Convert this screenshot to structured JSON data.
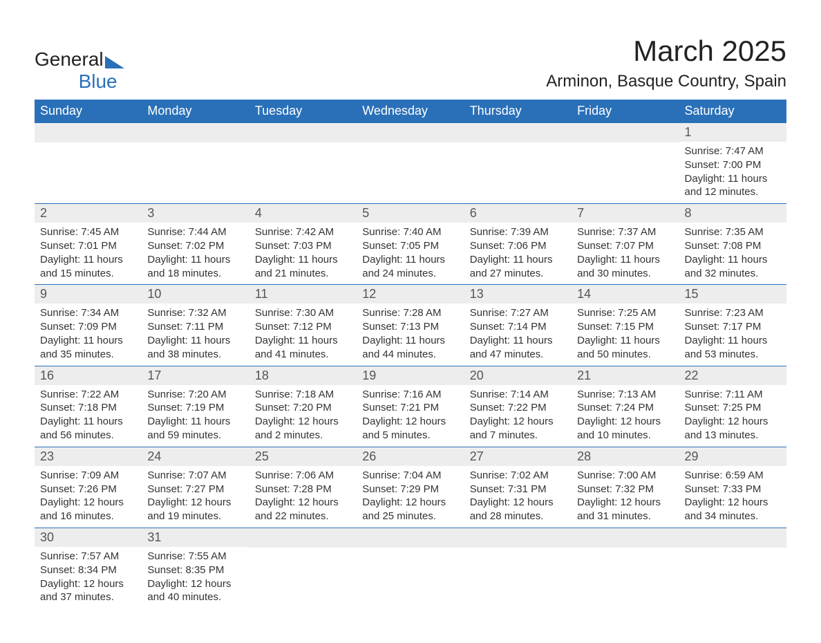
{
  "logo": {
    "line1": "General",
    "line2": "Blue"
  },
  "title": "March 2025",
  "subtitle": "Arminon, Basque Country, Spain",
  "colors": {
    "header_bg": "#2a70b8",
    "header_text": "#ffffff",
    "daynum_bg": "#ededed",
    "body_bg": "#ffffff",
    "text": "#333333"
  },
  "day_headers": [
    "Sunday",
    "Monday",
    "Tuesday",
    "Wednesday",
    "Thursday",
    "Friday",
    "Saturday"
  ],
  "first_weekday": 6,
  "num_days": 31,
  "days": {
    "1": {
      "sunrise": "7:47 AM",
      "sunset": "7:00 PM",
      "daylight": "11 hours and 12 minutes."
    },
    "2": {
      "sunrise": "7:45 AM",
      "sunset": "7:01 PM",
      "daylight": "11 hours and 15 minutes."
    },
    "3": {
      "sunrise": "7:44 AM",
      "sunset": "7:02 PM",
      "daylight": "11 hours and 18 minutes."
    },
    "4": {
      "sunrise": "7:42 AM",
      "sunset": "7:03 PM",
      "daylight": "11 hours and 21 minutes."
    },
    "5": {
      "sunrise": "7:40 AM",
      "sunset": "7:05 PM",
      "daylight": "11 hours and 24 minutes."
    },
    "6": {
      "sunrise": "7:39 AM",
      "sunset": "7:06 PM",
      "daylight": "11 hours and 27 minutes."
    },
    "7": {
      "sunrise": "7:37 AM",
      "sunset": "7:07 PM",
      "daylight": "11 hours and 30 minutes."
    },
    "8": {
      "sunrise": "7:35 AM",
      "sunset": "7:08 PM",
      "daylight": "11 hours and 32 minutes."
    },
    "9": {
      "sunrise": "7:34 AM",
      "sunset": "7:09 PM",
      "daylight": "11 hours and 35 minutes."
    },
    "10": {
      "sunrise": "7:32 AM",
      "sunset": "7:11 PM",
      "daylight": "11 hours and 38 minutes."
    },
    "11": {
      "sunrise": "7:30 AM",
      "sunset": "7:12 PM",
      "daylight": "11 hours and 41 minutes."
    },
    "12": {
      "sunrise": "7:28 AM",
      "sunset": "7:13 PM",
      "daylight": "11 hours and 44 minutes."
    },
    "13": {
      "sunrise": "7:27 AM",
      "sunset": "7:14 PM",
      "daylight": "11 hours and 47 minutes."
    },
    "14": {
      "sunrise": "7:25 AM",
      "sunset": "7:15 PM",
      "daylight": "11 hours and 50 minutes."
    },
    "15": {
      "sunrise": "7:23 AM",
      "sunset": "7:17 PM",
      "daylight": "11 hours and 53 minutes."
    },
    "16": {
      "sunrise": "7:22 AM",
      "sunset": "7:18 PM",
      "daylight": "11 hours and 56 minutes."
    },
    "17": {
      "sunrise": "7:20 AM",
      "sunset": "7:19 PM",
      "daylight": "11 hours and 59 minutes."
    },
    "18": {
      "sunrise": "7:18 AM",
      "sunset": "7:20 PM",
      "daylight": "12 hours and 2 minutes."
    },
    "19": {
      "sunrise": "7:16 AM",
      "sunset": "7:21 PM",
      "daylight": "12 hours and 5 minutes."
    },
    "20": {
      "sunrise": "7:14 AM",
      "sunset": "7:22 PM",
      "daylight": "12 hours and 7 minutes."
    },
    "21": {
      "sunrise": "7:13 AM",
      "sunset": "7:24 PM",
      "daylight": "12 hours and 10 minutes."
    },
    "22": {
      "sunrise": "7:11 AM",
      "sunset": "7:25 PM",
      "daylight": "12 hours and 13 minutes."
    },
    "23": {
      "sunrise": "7:09 AM",
      "sunset": "7:26 PM",
      "daylight": "12 hours and 16 minutes."
    },
    "24": {
      "sunrise": "7:07 AM",
      "sunset": "7:27 PM",
      "daylight": "12 hours and 19 minutes."
    },
    "25": {
      "sunrise": "7:06 AM",
      "sunset": "7:28 PM",
      "daylight": "12 hours and 22 minutes."
    },
    "26": {
      "sunrise": "7:04 AM",
      "sunset": "7:29 PM",
      "daylight": "12 hours and 25 minutes."
    },
    "27": {
      "sunrise": "7:02 AM",
      "sunset": "7:31 PM",
      "daylight": "12 hours and 28 minutes."
    },
    "28": {
      "sunrise": "7:00 AM",
      "sunset": "7:32 PM",
      "daylight": "12 hours and 31 minutes."
    },
    "29": {
      "sunrise": "6:59 AM",
      "sunset": "7:33 PM",
      "daylight": "12 hours and 34 minutes."
    },
    "30": {
      "sunrise": "7:57 AM",
      "sunset": "8:34 PM",
      "daylight": "12 hours and 37 minutes."
    },
    "31": {
      "sunrise": "7:55 AM",
      "sunset": "8:35 PM",
      "daylight": "12 hours and 40 minutes."
    }
  },
  "labels": {
    "sunrise": "Sunrise:",
    "sunset": "Sunset:",
    "daylight": "Daylight:"
  }
}
